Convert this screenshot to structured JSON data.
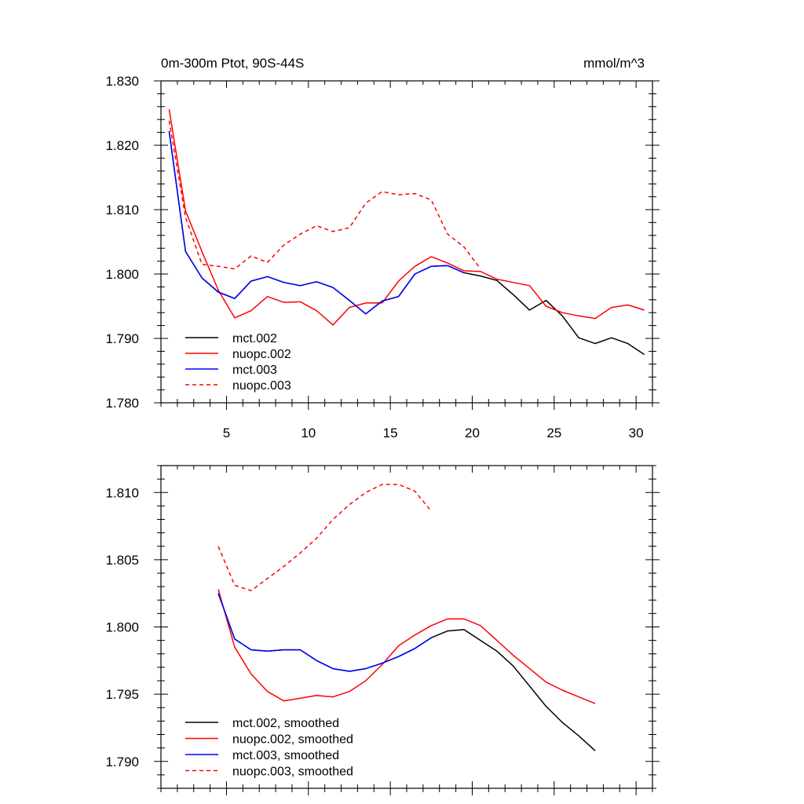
{
  "chart_data": [
    {
      "type": "line",
      "title": "0m-300m Ptot, 90S-44S",
      "units": "mmol/m^3",
      "xlim": [
        1,
        31
      ],
      "ylim": [
        1.78,
        1.83
      ],
      "xticks": [
        5,
        10,
        15,
        20,
        25,
        30
      ],
      "yticks": [
        1.78,
        1.79,
        1.8,
        1.81,
        1.82,
        1.83
      ],
      "ytick_labels": [
        "1.780",
        "1.790",
        "1.800",
        "1.810",
        "1.820",
        "1.830"
      ],
      "xtick_labels": [
        "5",
        "10",
        "15",
        "20",
        "25",
        "30"
      ],
      "legend_position": "bottom-left",
      "series": [
        {
          "name": "mct.002",
          "color": "#000000",
          "dash": "solid",
          "x": [
            1.5,
            2.5,
            3.5,
            4.5,
            5.5,
            6.5,
            7.5,
            8.5,
            9.5,
            10.5,
            11.5,
            12.5,
            13.5,
            14.5,
            15.5,
            16.5,
            17.5,
            18.5,
            19.5,
            20.5,
            21.5,
            22.5,
            23.5,
            24.5,
            25.5,
            26.5,
            27.5,
            28.5,
            29.5,
            30.5
          ],
          "values": [
            1.8222,
            1.8035,
            1.7994,
            1.7972,
            1.7962,
            1.7989,
            1.7996,
            1.7987,
            1.7982,
            1.7988,
            1.7979,
            1.7959,
            1.7938,
            1.7958,
            1.7965,
            1.8,
            1.8012,
            1.8013,
            1.8002,
            1.7997,
            1.799,
            1.7968,
            1.7944,
            1.7959,
            1.7935,
            1.7901,
            1.7892,
            1.7901,
            1.7892,
            1.7875
          ]
        },
        {
          "name": "nuopc.002",
          "color": "#ff0000",
          "dash": "solid",
          "x": [
            1.5,
            2.5,
            3.5,
            4.5,
            5.5,
            6.5,
            7.5,
            8.5,
            9.5,
            10.5,
            11.5,
            12.5,
            13.5,
            14.5,
            15.5,
            16.5,
            17.5,
            18.5,
            19.5,
            20.5,
            21.5,
            22.5,
            23.5,
            24.5,
            25.5,
            26.5,
            27.5,
            28.5,
            29.5,
            30.5
          ],
          "values": [
            1.8256,
            1.8098,
            1.8035,
            1.7975,
            1.7932,
            1.7943,
            1.7965,
            1.7956,
            1.7957,
            1.7943,
            1.7921,
            1.7948,
            1.7955,
            1.7955,
            1.7989,
            1.8012,
            1.8027,
            1.8017,
            1.8005,
            1.8004,
            1.7992,
            1.7987,
            1.7982,
            1.795,
            1.794,
            1.7935,
            1.7931,
            1.7948,
            1.7952,
            1.7944
          ]
        },
        {
          "name": "mct.003",
          "color": "#0000ff",
          "dash": "solid",
          "x": [
            1.5,
            2.5,
            3.5,
            4.5,
            5.5,
            6.5,
            7.5,
            8.5,
            9.5,
            10.5,
            11.5,
            12.5,
            13.5,
            14.5,
            15.5,
            16.5,
            17.5,
            18.5,
            19.5
          ],
          "values": [
            1.8222,
            1.8035,
            1.7994,
            1.7972,
            1.7962,
            1.7989,
            1.7996,
            1.7987,
            1.7982,
            1.7988,
            1.7979,
            1.7959,
            1.7938,
            1.7958,
            1.7965,
            1.8,
            1.8012,
            1.8013,
            1.8002
          ]
        },
        {
          "name": "nuopc.003",
          "color": "#ff0000",
          "dash": "dashed",
          "x": [
            1.5,
            2.5,
            3.5,
            4.5,
            5.5,
            6.5,
            7.5,
            8.5,
            9.5,
            10.5,
            11.5,
            12.5,
            13.5,
            14.5,
            15.5,
            16.5,
            17.5,
            18.5,
            19.5,
            20.5
          ],
          "values": [
            1.8238,
            1.8088,
            1.8015,
            1.8012,
            1.8008,
            1.8028,
            1.8018,
            1.8045,
            1.8062,
            1.8075,
            1.8066,
            1.8072,
            1.811,
            1.8128,
            1.8123,
            1.8125,
            1.8115,
            1.8062,
            1.8042,
            1.8008
          ]
        }
      ]
    },
    {
      "type": "line",
      "title": "",
      "xlim": [
        1,
        31
      ],
      "ylim": [
        1.788,
        1.812
      ],
      "xticks": [
        5,
        10,
        15,
        20,
        25,
        30
      ],
      "yticks": [
        1.79,
        1.795,
        1.8,
        1.805,
        1.81
      ],
      "ytick_labels": [
        "1.790",
        "1.795",
        "1.800",
        "1.805",
        "1.810"
      ],
      "legend_position": "bottom-left",
      "series": [
        {
          "name": "mct.002, smoothed",
          "color": "#000000",
          "dash": "solid",
          "x": [
            4.5,
            5.5,
            6.5,
            7.5,
            8.5,
            9.5,
            10.5,
            11.5,
            12.5,
            13.5,
            14.5,
            15.5,
            16.5,
            17.5,
            18.5,
            19.5,
            20.5,
            21.5,
            22.5,
            23.5,
            24.5,
            25.5,
            26.5,
            27.5
          ],
          "values": [
            1.8025,
            1.7991,
            1.7983,
            1.7982,
            1.7983,
            1.7983,
            1.7975,
            1.7969,
            1.7967,
            1.7969,
            1.7973,
            1.7978,
            1.7984,
            1.7992,
            1.7997,
            1.7998,
            1.799,
            1.7982,
            1.7971,
            1.7956,
            1.7941,
            1.7929,
            1.7919,
            1.7908
          ]
        },
        {
          "name": "nuopc.002, smoothed",
          "color": "#ff0000",
          "dash": "solid",
          "x": [
            4.5,
            5.5,
            6.5,
            7.5,
            8.5,
            9.5,
            10.5,
            11.5,
            12.5,
            13.5,
            14.5,
            15.5,
            16.5,
            17.5,
            18.5,
            19.5,
            20.5,
            21.5,
            22.5,
            23.5,
            24.5,
            25.5,
            26.5,
            27.5
          ],
          "values": [
            1.8028,
            1.7985,
            1.7965,
            1.7952,
            1.7945,
            1.7947,
            1.7949,
            1.7948,
            1.7952,
            1.796,
            1.7972,
            1.7986,
            1.7994,
            1.8001,
            1.8006,
            1.8006,
            1.8001,
            1.799,
            1.7979,
            1.7969,
            1.7959,
            1.7953,
            1.7948,
            1.7943
          ]
        },
        {
          "name": "mct.003, smoothed",
          "color": "#0000ff",
          "dash": "solid",
          "x": [
            4.5,
            5.5,
            6.5,
            7.5,
            8.5,
            9.5,
            10.5,
            11.5,
            12.5,
            13.5,
            14.5,
            15.5,
            16.5,
            17.5
          ],
          "values": [
            1.8025,
            1.7991,
            1.7983,
            1.7982,
            1.7983,
            1.7983,
            1.7975,
            1.7969,
            1.7967,
            1.7969,
            1.7973,
            1.7978,
            1.7984,
            1.7992
          ]
        },
        {
          "name": "nuopc.003, smoothed",
          "color": "#ff0000",
          "dash": "dashed",
          "x": [
            4.5,
            5.5,
            6.5,
            7.5,
            8.5,
            9.5,
            10.5,
            11.5,
            12.5,
            13.5,
            14.5,
            15.5,
            16.5,
            17.5
          ],
          "values": [
            1.806,
            1.8031,
            1.8027,
            1.8036,
            1.8045,
            1.8055,
            1.8066,
            1.808,
            1.8091,
            1.81,
            1.8106,
            1.8106,
            1.8101,
            1.8086
          ]
        }
      ]
    }
  ]
}
